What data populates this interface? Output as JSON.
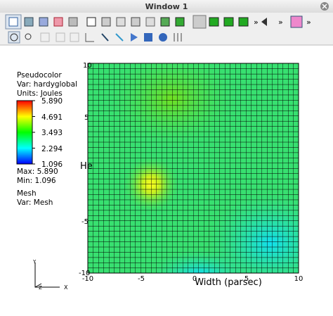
{
  "window": {
    "title": "Window 1"
  },
  "toolbar": {
    "overflow": [
      "»",
      "»",
      "»"
    ]
  },
  "legend": {
    "plot": "Pseudocolor",
    "var": "Var: hardyglobal",
    "units": "Units: Joules",
    "ticks": [
      "5.890",
      "4.691",
      "3.493",
      "2.294",
      "1.096"
    ],
    "max": "Max: 5.890",
    "min": "Min: 1.096",
    "mesh_plot": "Mesh",
    "mesh_var": "Var: Mesh"
  },
  "axes": {
    "y_ticks": [
      "10",
      "5",
      "-5",
      "-10"
    ],
    "x_ticks": [
      "-10",
      "-5",
      "0",
      "5",
      "10"
    ],
    "x_title": "Width (parsec)",
    "y_title": "He"
  },
  "triad": {
    "y": "Y",
    "z": "Z",
    "x": "X"
  }
}
